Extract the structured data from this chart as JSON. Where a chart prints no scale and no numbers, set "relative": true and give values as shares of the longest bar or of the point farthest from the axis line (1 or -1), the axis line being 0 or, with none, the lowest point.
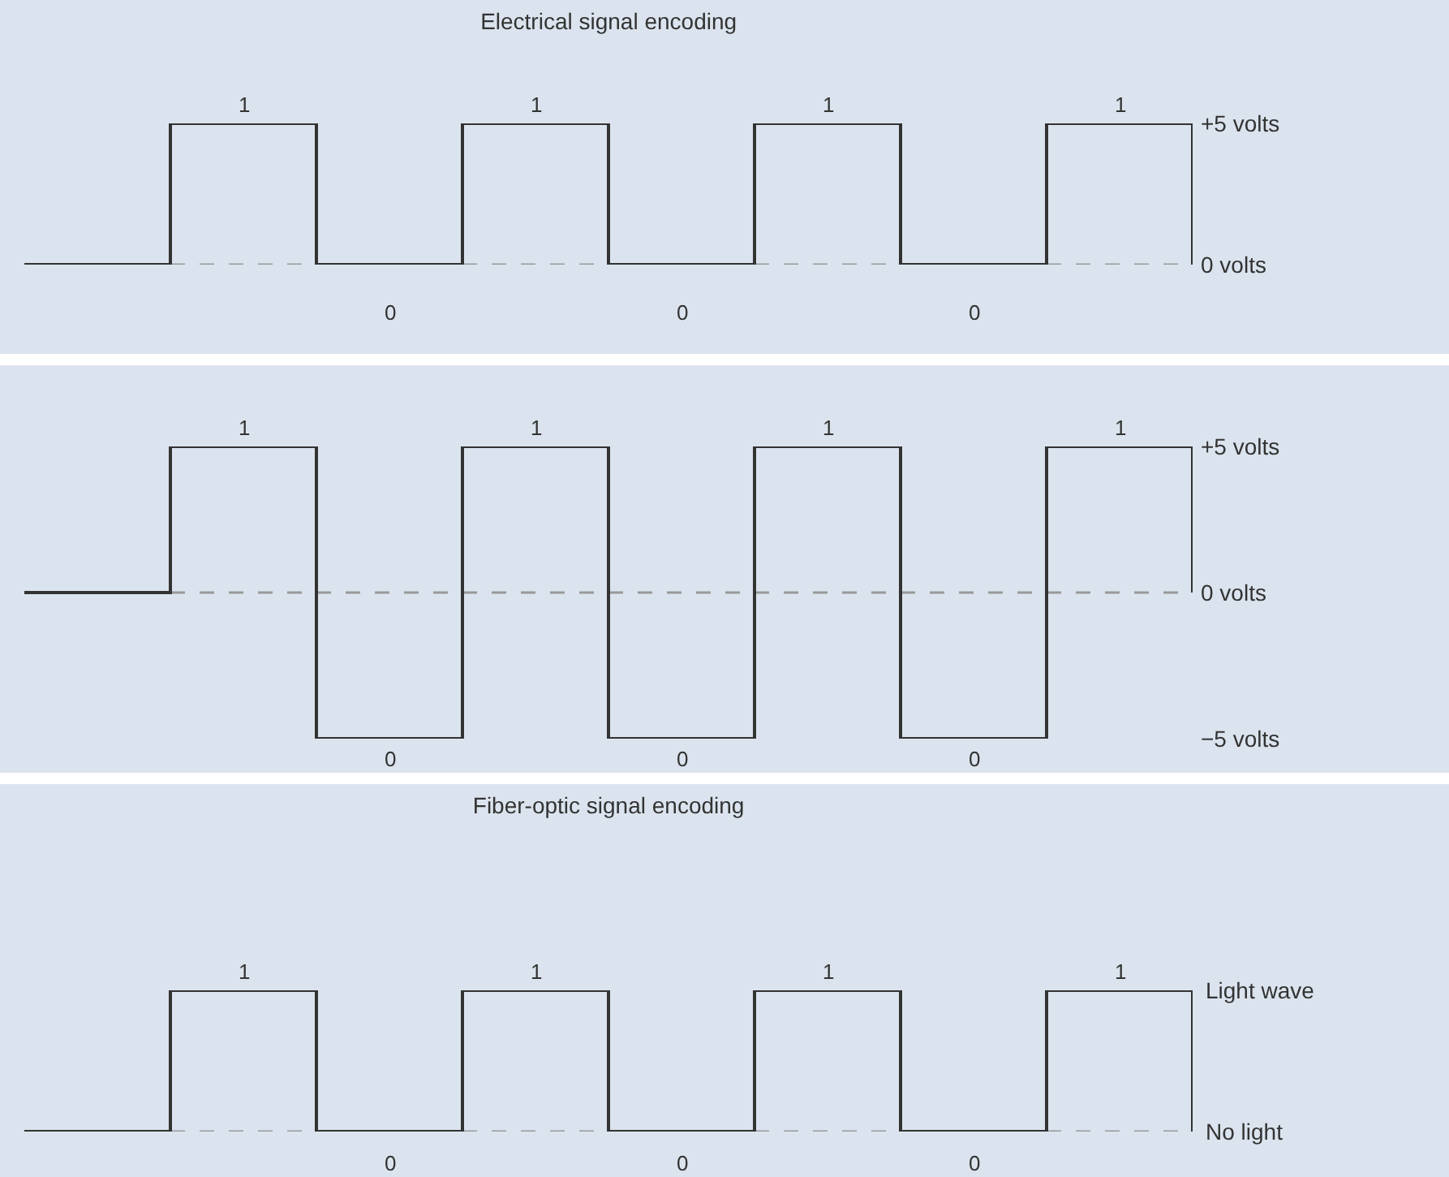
{
  "chart_data": [
    {
      "type": "step",
      "title": "Electrical signal encoding",
      "categories": [
        null,
        null,
        null,
        null,
        null,
        null,
        null,
        null,
        null
      ],
      "values": [
        0,
        5,
        0,
        5,
        0,
        5,
        0,
        5,
        0
      ],
      "color": "#333333",
      "ylim": [
        0,
        5
      ],
      "yticks": [
        {
          "value": 5,
          "label": "+5 volts"
        },
        {
          "value": 0,
          "label": "0 volts"
        }
      ],
      "tick_labels": "y",
      "grid": false,
      "marker": "none",
      "line_style": "solid",
      "ref_lines": [
        {
          "axis": "y",
          "value": 0,
          "color": "#999999",
          "line_style": "dashed"
        }
      ],
      "annotations": [
        "1",
        "0",
        "1",
        "0",
        "1",
        "0",
        "1"
      ]
    },
    {
      "type": "step",
      "categories": [
        null,
        null,
        null,
        null,
        null,
        null,
        null,
        null,
        null
      ],
      "values": [
        0,
        5,
        -5,
        5,
        -5,
        5,
        -5,
        5,
        0
      ],
      "color": "#333333",
      "ylim": [
        -5,
        5
      ],
      "yticks": [
        {
          "value": 5,
          "label": "+5 volts"
        },
        {
          "value": 0,
          "label": "0 volts"
        },
        {
          "value": -5,
          "label": "−5 volts"
        }
      ],
      "tick_labels": "y",
      "grid": false,
      "marker": "none",
      "line_style": "solid",
      "ref_lines": [
        {
          "axis": "y",
          "value": 0,
          "color": "#999999",
          "line_style": "dashed"
        }
      ],
      "annotations": [
        "1",
        "0",
        "1",
        "0",
        "1",
        "0",
        "1"
      ]
    },
    {
      "type": "step",
      "title": "Fiber-optic signal encoding",
      "categories": [
        null,
        null,
        null,
        null,
        null,
        null,
        null,
        null,
        null
      ],
      "values": [
        0,
        1,
        0,
        1,
        0,
        1,
        0,
        1,
        0
      ],
      "color": "#333333",
      "relative": true,
      "tick_labels": false,
      "grid": false,
      "marker": "none",
      "line_style": "solid",
      "ref_lines": [
        {
          "axis": "y",
          "value": 0,
          "color": "#999999",
          "line_style": "dashed"
        }
      ],
      "annotations": [
        "1",
        "0",
        "1",
        "0",
        "1",
        "0",
        "1",
        "Light wave",
        "No light"
      ]
    }
  ]
}
